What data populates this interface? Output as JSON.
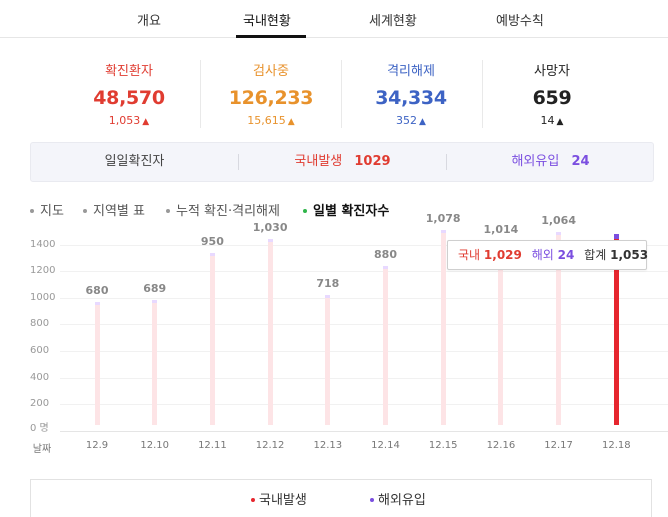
{
  "tabs": [
    "개요",
    "국내현황",
    "세계현황",
    "예방수칙"
  ],
  "active_tab": "국내현황",
  "stats": [
    {
      "label": "확진환자",
      "value": "48,570",
      "delta": "1,053",
      "color": "#e03c31"
    },
    {
      "label": "검사중",
      "value": "126,233",
      "delta": "15,615",
      "color": "#e8922c"
    },
    {
      "label": "격리해제",
      "value": "34,334",
      "delta": "352",
      "color": "#3d63c4"
    },
    {
      "label": "사망자",
      "value": "659",
      "delta": "14",
      "color": "#222222"
    }
  ],
  "daily": {
    "label": "일일확진자",
    "domestic_label": "국내발생",
    "domestic_value": "1029",
    "overseas_label": "해외유입",
    "overseas_value": "24"
  },
  "options": [
    "지도",
    "지역별 표",
    "누적 확진·격리해제",
    "일별 확진자수"
  ],
  "active_option": "일별 확진자수",
  "tooltip": {
    "domestic_label": "국내",
    "domestic_value": "1,029",
    "overseas_label": "해외",
    "overseas_value": "24",
    "total_label": "합계",
    "total_value": "1,053"
  },
  "legend": {
    "domestic": "국내발생",
    "overseas": "해외유입"
  },
  "colors": {
    "domestic": "#e6262e",
    "overseas": "#7b4fe0",
    "domestic_light": "#fde4e6",
    "active_dot": "#2fb54a"
  },
  "chart_data": {
    "type": "bar",
    "y_ticks": [
      "1400",
      "1200",
      "1000",
      "800",
      "600",
      "400",
      "200",
      "0 명"
    ],
    "x_axis_label": "날짜",
    "categories": [
      "12.9",
      "12.10",
      "12.11",
      "12.12",
      "12.13",
      "12.14",
      "12.15",
      "12.16",
      "12.17",
      "12.18"
    ],
    "totals": [
      680,
      689,
      950,
      1030,
      718,
      880,
      1078,
      1014,
      1064,
      1053
    ],
    "labels": [
      "680",
      "689",
      "950",
      "1,030",
      "718",
      "880",
      "1,078",
      "1,014",
      "1,064",
      ""
    ],
    "series": [
      {
        "name": "국내발생",
        "values": [
          null,
          null,
          null,
          null,
          null,
          null,
          null,
          null,
          null,
          1029
        ]
      },
      {
        "name": "해외유입",
        "values": [
          null,
          null,
          null,
          null,
          null,
          null,
          null,
          null,
          null,
          24
        ]
      }
    ],
    "highlighted_index": 9,
    "ylim": [
      0,
      1400
    ],
    "grid": true
  }
}
